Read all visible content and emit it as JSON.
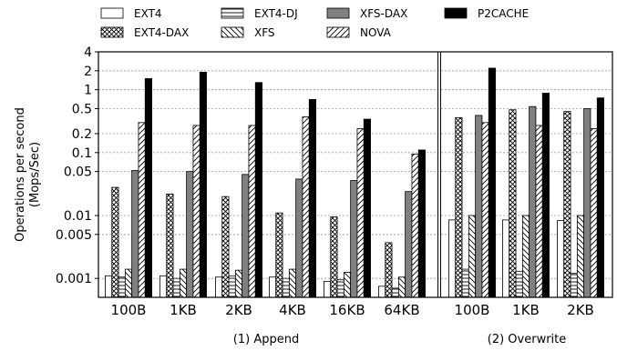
{
  "chart_data": {
    "type": "bar",
    "y_scale": "log",
    "ylim": [
      0.0005,
      4
    ],
    "yticks": [
      4,
      2,
      1,
      0.5,
      0.2,
      0.1,
      0.05,
      0.01,
      0.005,
      0.001
    ],
    "ytick_labels": [
      "4",
      "2",
      "1",
      "0.5",
      "0.2",
      "0.1",
      "0.05",
      "0.01",
      "0.005",
      "0.001"
    ],
    "ylabel_line1": "Operations per second",
    "ylabel_line2": "(Mops/Sec)",
    "grid": "horizontal dotted",
    "legend_position": "top",
    "groups": [
      {
        "label": "(1) Append",
        "categories": [
          "100B",
          "1KB",
          "2KB",
          "4KB",
          "16KB",
          "64KB"
        ]
      },
      {
        "label": "(2) Overwrite",
        "categories": [
          "100B",
          "1KB",
          "2KB"
        ]
      }
    ],
    "categories": [
      "100B",
      "1KB",
      "2KB",
      "4KB",
      "16KB",
      "64KB",
      "100B",
      "1KB",
      "2KB"
    ],
    "series": [
      {
        "name": "EXT4",
        "pattern": "white",
        "values": [
          0.0011,
          0.0011,
          0.00105,
          0.00105,
          0.0009,
          0.00075,
          0.0085,
          0.0085,
          0.0083
        ]
      },
      {
        "name": "EXT4-DAX",
        "pattern": "cross",
        "values": [
          0.028,
          0.022,
          0.02,
          0.011,
          0.0095,
          0.0037,
          0.36,
          0.48,
          0.45
        ]
      },
      {
        "name": "EXT4-DJ",
        "pattern": "hlines",
        "values": [
          0.00105,
          0.001,
          0.0011,
          0.001,
          0.00095,
          0.0007,
          0.0014,
          0.0013,
          0.0012
        ]
      },
      {
        "name": "XFS",
        "pattern": "backslash",
        "values": [
          0.0014,
          0.0014,
          0.00135,
          0.0014,
          0.00125,
          0.00105,
          0.01,
          0.01,
          0.01
        ]
      },
      {
        "name": "XFS-DAX",
        "pattern": "gray",
        "values": [
          0.052,
          0.05,
          0.045,
          0.038,
          0.036,
          0.024,
          0.39,
          0.54,
          0.5
        ]
      },
      {
        "name": "NOVA",
        "pattern": "slash",
        "values": [
          0.3,
          0.27,
          0.27,
          0.37,
          0.24,
          0.095,
          0.3,
          0.27,
          0.24
        ]
      },
      {
        "name": "P2CACHE",
        "pattern": "black",
        "values": [
          1.5,
          1.9,
          1.3,
          0.7,
          0.34,
          0.11,
          2.2,
          0.88,
          0.74
        ]
      }
    ]
  }
}
